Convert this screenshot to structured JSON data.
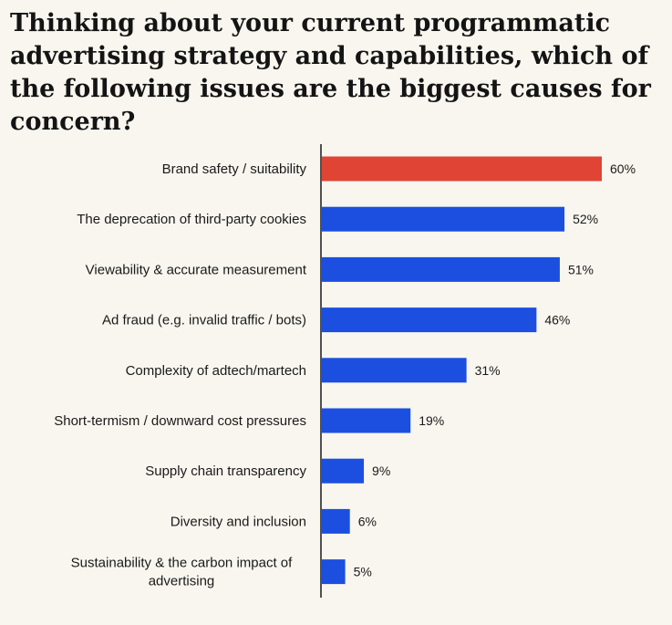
{
  "title": "Thinking about your current programmatic advertising strategy and capabilities, which of the following issues are the biggest causes for concern?",
  "colors": {
    "highlight": "#e04434",
    "bar": "#1c4fe0",
    "axis": "#1a1a1a",
    "background": "#f8f6ef"
  },
  "chart_data": {
    "type": "bar",
    "orientation": "horizontal",
    "categories": [
      [
        "Brand safety / suitability"
      ],
      [
        "The deprecation of third-party cookies"
      ],
      [
        "Viewability & accurate measurement"
      ],
      [
        "Ad fraud (e.g. invalid traffic / bots)"
      ],
      [
        "Complexity of adtech/martech"
      ],
      [
        "Short-termism / downward cost pressures"
      ],
      [
        "Supply chain transparency"
      ],
      [
        "Diversity and inclusion"
      ],
      [
        "Sustainability & the carbon impact of",
        "advertising"
      ]
    ],
    "values": [
      60,
      52,
      51,
      46,
      31,
      19,
      9,
      6,
      5
    ],
    "value_labels": [
      "60%",
      "52%",
      "51%",
      "46%",
      "31%",
      "19%",
      "9%",
      "6%",
      "5%"
    ],
    "highlight_index": 0,
    "xlim": [
      0,
      60
    ],
    "grid": false,
    "legend": "none"
  }
}
